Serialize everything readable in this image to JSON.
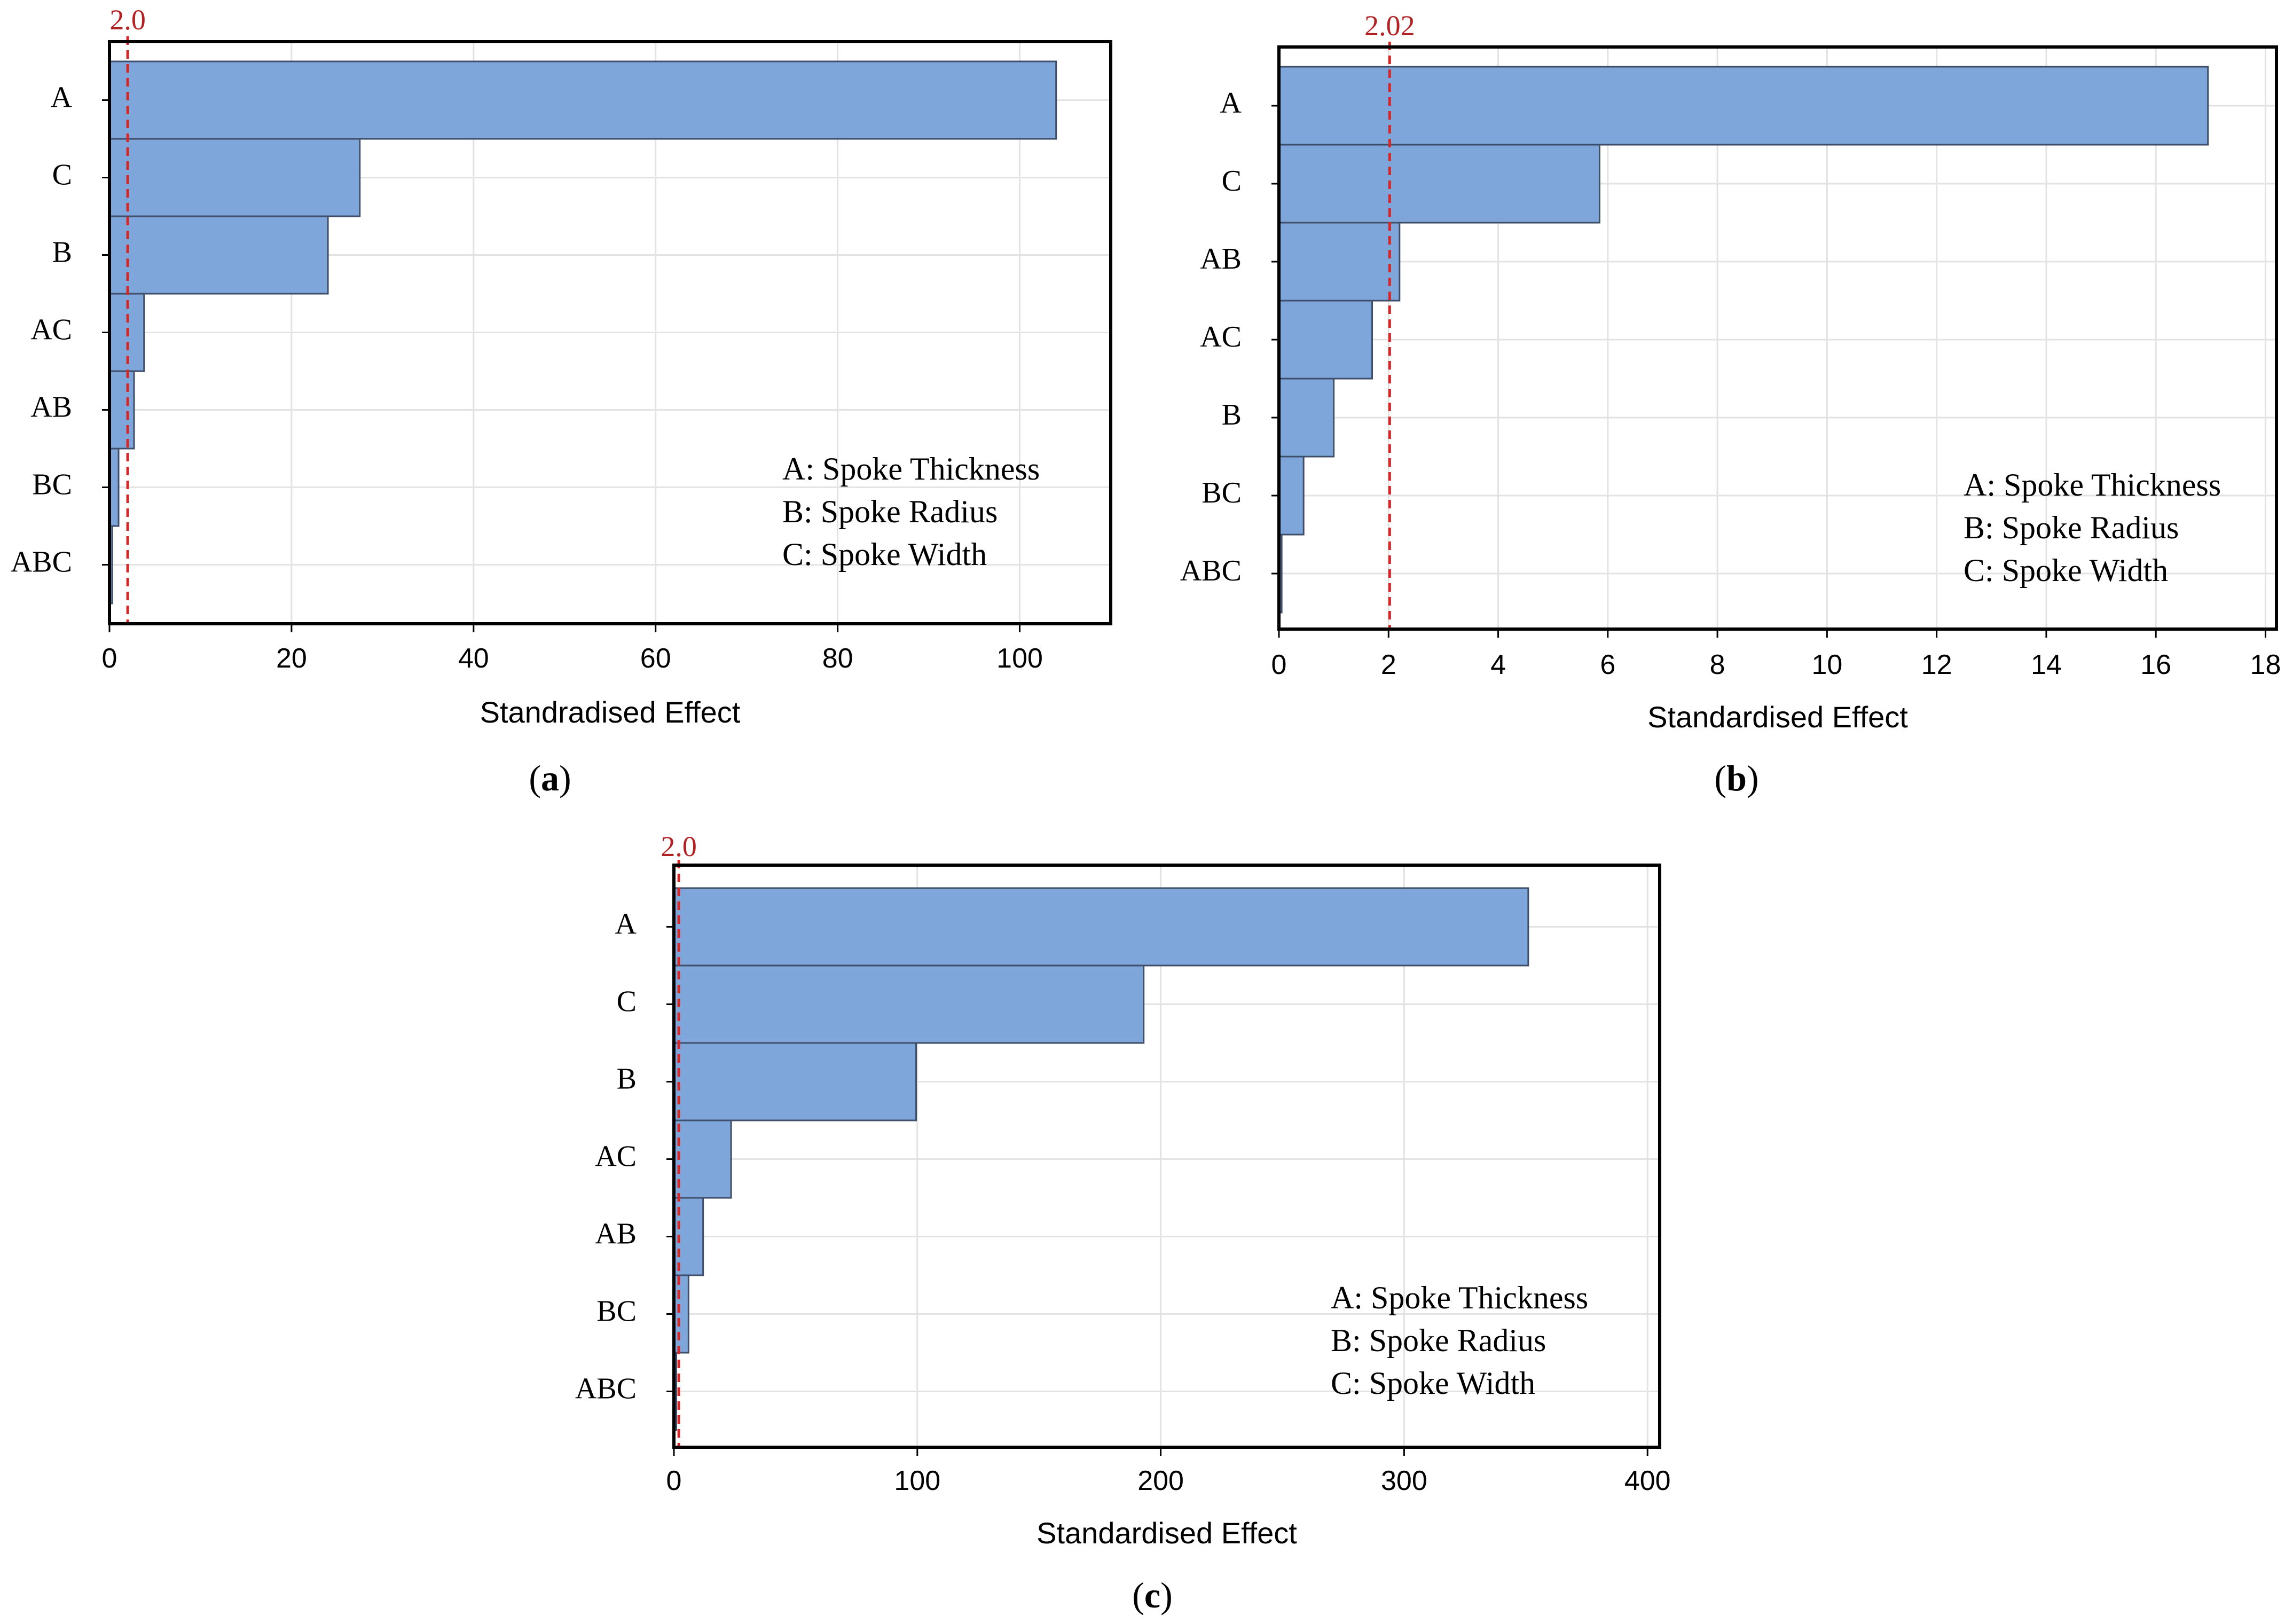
{
  "colors": {
    "bar_fill": "#7ea6da",
    "bar_stroke": "#3f4f6a",
    "grid": "#e3e3e3",
    "reference_line": "#d62728",
    "reference_label": "#b22222",
    "frame": "#000000"
  },
  "chart_data": [
    {
      "type": "bar",
      "orientation": "horizontal",
      "panel_label": "a",
      "categories": [
        "A",
        "C",
        "B",
        "AC",
        "AB",
        "BC",
        "ABC"
      ],
      "values": [
        104,
        27.5,
        24,
        3.8,
        2.7,
        1.0,
        0.3
      ],
      "xlabel": "Standradised Effect",
      "xlim": [
        0,
        110
      ],
      "xticks": [
        0,
        20,
        40,
        60,
        80,
        100
      ],
      "reference_value": 2.0,
      "reference_label": "2.0",
      "legend_lines": [
        "A: Spoke Thickness",
        "B: Spoke Radius",
        "C: Spoke Width"
      ],
      "grid": true
    },
    {
      "type": "bar",
      "orientation": "horizontal",
      "panel_label": "b",
      "categories": [
        "A",
        "C",
        "AB",
        "AC",
        "B",
        "BC",
        "ABC"
      ],
      "values": [
        16.95,
        5.85,
        2.2,
        1.7,
        1.0,
        0.45,
        0.05
      ],
      "xlabel": "Standardised Effect",
      "xlim": [
        0,
        18.2
      ],
      "xticks": [
        0,
        2,
        4,
        6,
        8,
        10,
        12,
        14,
        16,
        18
      ],
      "reference_value": 2.02,
      "reference_label": "2.02",
      "legend_lines": [
        "A: Spoke Thickness",
        "B: Spoke Radius",
        "C: Spoke Width"
      ],
      "grid": true
    },
    {
      "type": "bar",
      "orientation": "horizontal",
      "panel_label": "c",
      "categories": [
        "A",
        "C",
        "B",
        "AC",
        "AB",
        "BC",
        "ABC"
      ],
      "values": [
        351,
        193,
        99.5,
        23.5,
        12,
        6,
        1
      ],
      "xlabel": "Standardised Effect",
      "xlim": [
        0,
        405
      ],
      "xticks": [
        0,
        100,
        200,
        300,
        400
      ],
      "reference_value": 2.0,
      "reference_label": "2.0",
      "legend_lines": [
        "A: Spoke Thickness",
        "B: Spoke Radius",
        "C: Spoke Width"
      ],
      "grid": true
    }
  ]
}
